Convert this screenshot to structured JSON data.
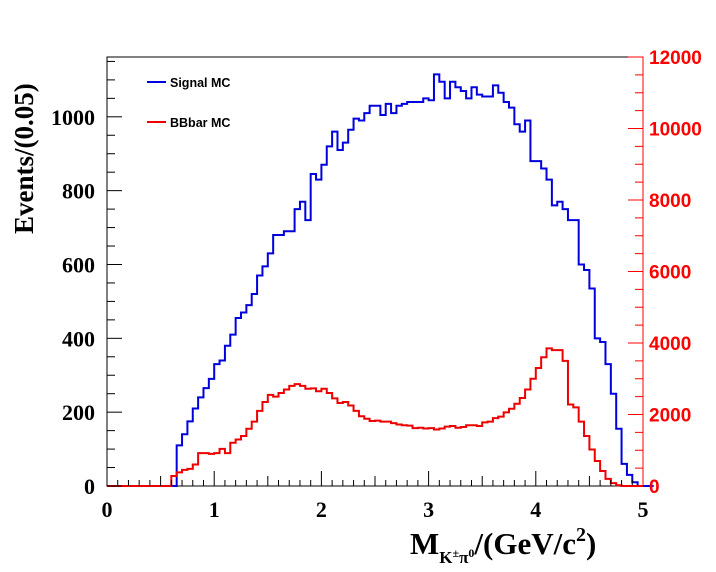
{
  "chart_data": {
    "type": "line",
    "style": "step-histogram",
    "title": "",
    "xlabel": {
      "main": "M",
      "subscript": "K",
      "sub_sup1": "±",
      "sub_mid": "π",
      "sub_sup2": "0",
      "rest": "/(GeV/c",
      "rest_sup": "2",
      "close": ")"
    },
    "ylabel": "Events/(0.05)",
    "xlim": [
      0,
      5
    ],
    "ylim_left": [
      0,
      1162
    ],
    "ylim_right": [
      0,
      12000
    ],
    "bin_width": 0.05,
    "x_ticks": [
      "0",
      "1",
      "2",
      "3",
      "4",
      "5"
    ],
    "y_ticks_left": [
      "0",
      "200",
      "400",
      "600",
      "800",
      "1000"
    ],
    "y_ticks_right": [
      "0",
      "2000",
      "4000",
      "6000",
      "8000",
      "10000",
      "12000"
    ],
    "grid": false,
    "legend_position": "top-left",
    "series": [
      {
        "name": "Signal MC",
        "color": "#0000dd",
        "axis": "left",
        "bin_start": 0,
        "values": [
          0,
          0,
          0,
          0,
          0,
          0,
          0,
          0,
          0,
          0,
          0,
          0,
          0,
          110,
          140,
          175,
          210,
          240,
          265,
          290,
          330,
          340,
          380,
          410,
          455,
          470,
          490,
          520,
          570,
          595,
          630,
          680,
          680,
          690,
          690,
          750,
          770,
          720,
          845,
          830,
          870,
          920,
          960,
          910,
          930,
          965,
          995,
          990,
          1010,
          1030,
          1030,
          1005,
          1035,
          1010,
          1030,
          1035,
          1040,
          1040,
          1040,
          1050,
          1045,
          1115,
          1095,
          1050,
          1095,
          1080,
          1070,
          1050,
          1080,
          1060,
          1055,
          1055,
          1085,
          1065,
          1040,
          1025,
          980,
          960,
          990,
          880,
          880,
          860,
          830,
          760,
          770,
          750,
          720,
          720,
          600,
          585,
          535,
          400,
          390,
          330,
          250,
          155,
          60,
          30,
          10,
          0,
          0,
          0
        ]
      },
      {
        "name": "BBbar MC",
        "color": "#ee0000",
        "axis": "right",
        "bin_start": 0,
        "values": [
          0,
          0,
          0,
          0,
          0,
          0,
          0,
          0,
          0,
          0,
          0,
          0,
          280,
          380,
          450,
          480,
          600,
          920,
          920,
          900,
          920,
          1040,
          920,
          1210,
          1300,
          1400,
          1600,
          1800,
          2100,
          2350,
          2550,
          2500,
          2600,
          2700,
          2800,
          2850,
          2800,
          2720,
          2730,
          2650,
          2720,
          2600,
          2450,
          2320,
          2350,
          2250,
          2100,
          1950,
          1880,
          1820,
          1830,
          1800,
          1800,
          1760,
          1720,
          1700,
          1690,
          1620,
          1630,
          1610,
          1620,
          1580,
          1610,
          1660,
          1680,
          1630,
          1650,
          1700,
          1700,
          1680,
          1780,
          1800,
          1900,
          1940,
          2060,
          2160,
          2300,
          2460,
          2700,
          3000,
          3300,
          3600,
          3850,
          3800,
          3800,
          3500,
          2280,
          2200,
          1800,
          1400,
          1020,
          700,
          420,
          200,
          80,
          20,
          0,
          0,
          0,
          0
        ]
      }
    ]
  }
}
